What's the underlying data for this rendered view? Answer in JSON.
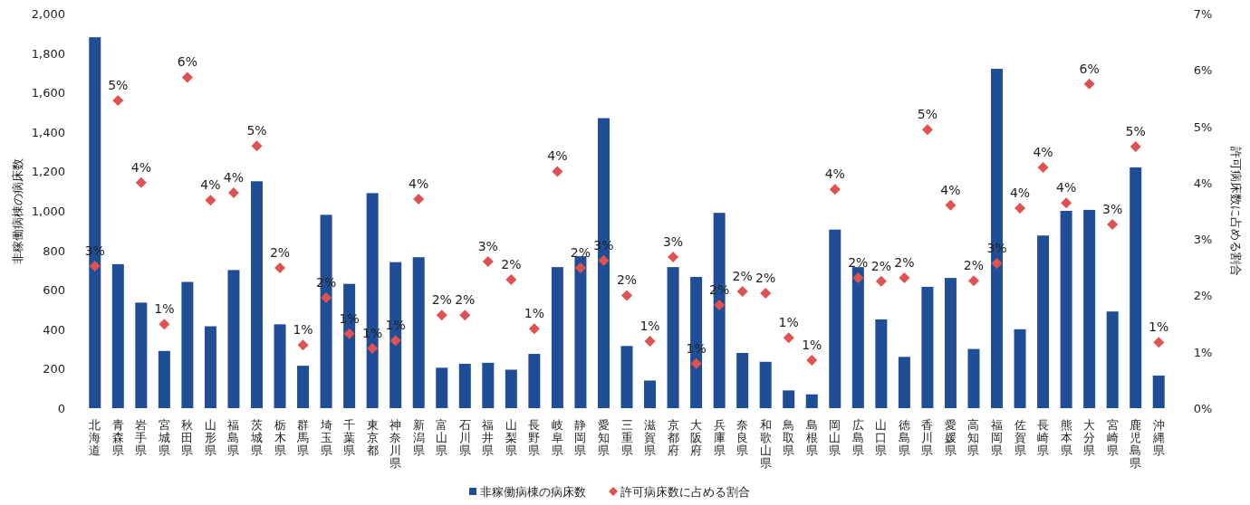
{
  "chart_data": {
    "type": "bar",
    "ylabel": "非稼働病棟の病床数",
    "y2label": "許可病床数に占める割合",
    "legend": "bottom",
    "categories": [
      "北海道",
      "青森県",
      "岩手県",
      "宮城県",
      "秋田県",
      "山形県",
      "福島県",
      "茨城県",
      "栃木県",
      "群馬県",
      "埼玉県",
      "千葉県",
      "東京都",
      "神奈川県",
      "新潟県",
      "富山県",
      "石川県",
      "福井県",
      "山梨県",
      "長野県",
      "岐阜県",
      "静岡県",
      "愛知県",
      "三重県",
      "滋賀県",
      "京都府",
      "大阪府",
      "兵庫県",
      "奈良県",
      "和歌山県",
      "鳥取県",
      "島根県",
      "岡山県",
      "広島県",
      "山口県",
      "徳島県",
      "香川県",
      "愛媛県",
      "高知県",
      "福岡県",
      "佐賀県",
      "長崎県",
      "熊本県",
      "大分県",
      "宮崎県",
      "鹿児島県",
      "沖縄県"
    ],
    "ylim": [
      0,
      2000
    ],
    "yticks": [
      0,
      200,
      400,
      600,
      800,
      {
        "value": 1000,
        "label": "1,000"
      },
      {
        "value": 1200,
        "label": "1,200"
      },
      {
        "value": 1400,
        "label": "1,400"
      },
      {
        "value": 1600,
        "label": "1,600"
      },
      {
        "value": 1800,
        "label": "1,800"
      },
      {
        "value": 2000,
        "label": "2,000"
      }
    ],
    "y2lim": [
      0,
      7
    ],
    "y2ticks": [
      {
        "value": 0,
        "label": "0%"
      },
      {
        "value": 1,
        "label": "1%"
      },
      {
        "value": 2,
        "label": "2%"
      },
      {
        "value": 3,
        "label": "3%"
      },
      {
        "value": 4,
        "label": "4%"
      },
      {
        "value": 5,
        "label": "5%"
      },
      {
        "value": 6,
        "label": "6%"
      },
      {
        "value": 7,
        "label": "7%"
      }
    ],
    "series": [
      {
        "name": "非稼働病棟の病床数",
        "color": "#1f4e96",
        "values": [
          1880,
          730,
          535,
          290,
          640,
          415,
          700,
          1150,
          425,
          215,
          980,
          630,
          1090,
          740,
          765,
          205,
          225,
          230,
          195,
          275,
          715,
          770,
          1470,
          315,
          140,
          715,
          665,
          990,
          280,
          235,
          90,
          70,
          905,
          715,
          450,
          260,
          615,
          660,
          300,
          1720,
          400,
          875,
          1000,
          1005,
          490,
          1220,
          165
        ]
      },
      {
        "name": "許可病床数に占める割合",
        "type": "scatter",
        "axis": "y2",
        "marker": "diamond",
        "color": "#e05252",
        "values": [
          2.52,
          5.46,
          4.0,
          1.49,
          5.87,
          3.69,
          3.82,
          4.65,
          2.49,
          1.12,
          1.96,
          1.32,
          1.06,
          1.2,
          3.71,
          1.65,
          1.65,
          2.6,
          2.28,
          1.41,
          4.2,
          2.49,
          2.62,
          2.0,
          1.19,
          2.68,
          0.79,
          1.83,
          2.07,
          2.04,
          1.25,
          0.85,
          3.88,
          2.31,
          2.25,
          2.31,
          4.94,
          3.6,
          2.26,
          2.57,
          3.55,
          4.27,
          3.64,
          5.75,
          3.26,
          4.64,
          1.17
        ],
        "value_labels": [
          "3%",
          "5%",
          "4%",
          "1%",
          "6%",
          "4%",
          "4%",
          "5%",
          "2%",
          "1%",
          "2%",
          "1%",
          "1%",
          "1%",
          "4%",
          "2%",
          "2%",
          "3%",
          "2%",
          "1%",
          "4%",
          "2%",
          "3%",
          "2%",
          "1%",
          "3%",
          "1%",
          "2%",
          "2%",
          "2%",
          "1%",
          "1%",
          "4%",
          "2%",
          "2%",
          "2%",
          "5%",
          "4%",
          "2%",
          "3%",
          "4%",
          "4%",
          "4%",
          "6%",
          "3%",
          "5%",
          "1%"
        ]
      }
    ]
  }
}
